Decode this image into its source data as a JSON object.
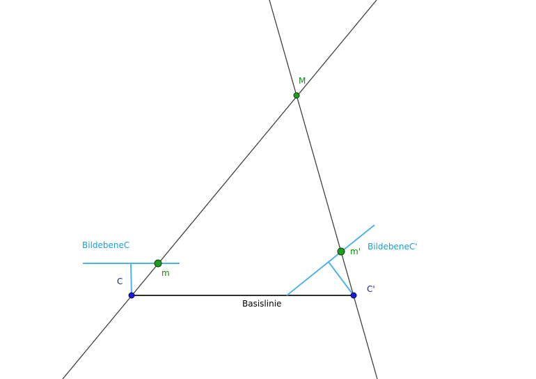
{
  "labels": {
    "point_M": "M",
    "point_m": "m",
    "point_m_prime": "m'",
    "point_C": "C",
    "point_C_prime": "C'",
    "plane_C": "BildebeneC",
    "plane_C_prime": "BildebeneC'",
    "baseline": "Basislinie"
  },
  "colors": {
    "construction_line": "#404040",
    "image_plane": "#4db3f0",
    "point_green": "#1e9e1e",
    "point_blue": "#1a1adb",
    "label_green": "#0a8a0a",
    "label_blue": "#1a1a99",
    "label_cyan": "#1a9fd0",
    "label_black": "#000000"
  }
}
